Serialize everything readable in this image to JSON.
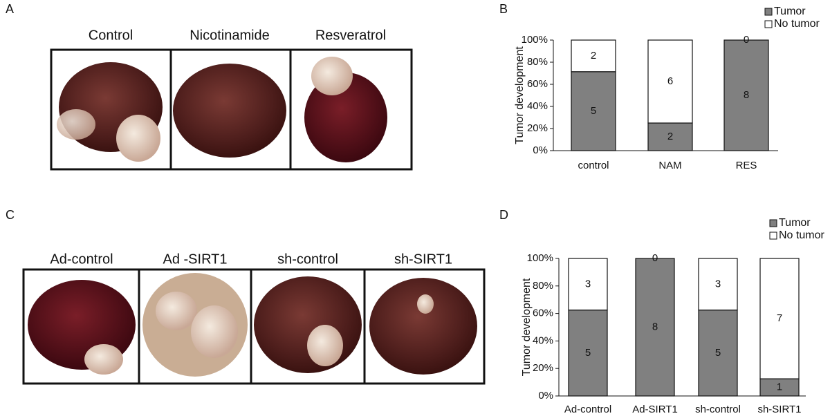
{
  "panel_labels": [
    "A",
    "B",
    "C",
    "D"
  ],
  "photo_rows": [
    {
      "labels": [
        "Control",
        "Nicotinamide",
        "Resveratrol"
      ]
    },
    {
      "labels": [
        "Ad-control",
        "Ad -SIRT1",
        "sh-control",
        "sh-SIRT1"
      ]
    }
  ],
  "chart_data": [
    {
      "type": "bar",
      "stacked": true,
      "y_label": "Tumor development",
      "categories": [
        "control",
        "NAM",
        "RES"
      ],
      "series": [
        {
          "name": "Tumor",
          "color": "#808080",
          "values": [
            71.4,
            25,
            100
          ],
          "counts": [
            5,
            2,
            8
          ]
        },
        {
          "name": "No tumor",
          "color": "#ffffff",
          "values": [
            28.6,
            75,
            0
          ],
          "counts": [
            2,
            6,
            0
          ]
        }
      ],
      "ylim": [
        0,
        100
      ],
      "yticks": [
        {
          "value": 0,
          "label": "0%"
        },
        {
          "value": 20,
          "label": "20%"
        },
        {
          "value": 40,
          "label": "40%"
        },
        {
          "value": 60,
          "label": "60%"
        },
        {
          "value": 80,
          "label": "80%"
        },
        {
          "value": 100,
          "label": "100%"
        }
      ],
      "legend": "top-right"
    },
    {
      "type": "bar",
      "stacked": true,
      "y_label": "Tumor development",
      "categories": [
        "Ad-control",
        "Ad-SIRT1",
        "sh-control",
        "sh-SIRT1"
      ],
      "series": [
        {
          "name": "Tumor",
          "color": "#808080",
          "values": [
            62.5,
            100,
            62.5,
            12.5
          ],
          "counts": [
            5,
            8,
            5,
            1
          ]
        },
        {
          "name": "No tumor",
          "color": "#ffffff",
          "values": [
            37.5,
            0,
            37.5,
            87.5
          ],
          "counts": [
            3,
            0,
            3,
            7
          ]
        }
      ],
      "ylim": [
        0,
        100
      ],
      "yticks": [
        {
          "value": 0,
          "label": "0%"
        },
        {
          "value": 20,
          "label": "20%"
        },
        {
          "value": 40,
          "label": "40%"
        },
        {
          "value": 60,
          "label": "60%"
        },
        {
          "value": 80,
          "label": "80%"
        },
        {
          "value": 100,
          "label": "100%"
        }
      ],
      "legend": "top-right"
    }
  ]
}
